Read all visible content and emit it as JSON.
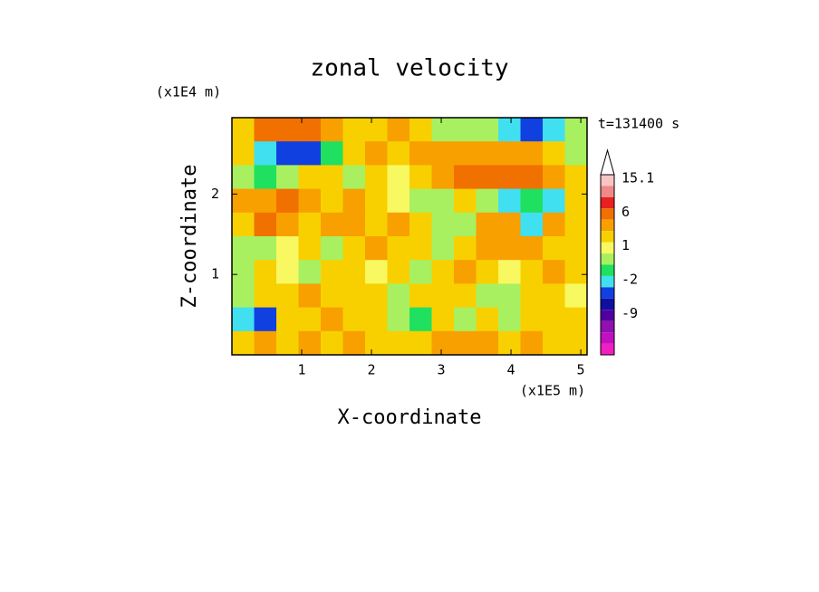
{
  "chart_data": {
    "type": "contour",
    "title": "zonal velocity",
    "x_label": "X-coordinate",
    "y_label": "Z-coordinate",
    "x_unit": "(x1E5 m)",
    "y_unit": "(x1E4 m)",
    "annotation": "t=131400 s",
    "xlim": [
      0,
      5.09
    ],
    "ylim": [
      0,
      2.95
    ],
    "xticks": [
      1,
      2,
      3,
      4,
      5
    ],
    "yticks": [
      1,
      2
    ],
    "levels": [
      15.1,
      12,
      9,
      6,
      4,
      2,
      1,
      0,
      -1,
      -2,
      -4,
      -6,
      -9,
      -12,
      -15,
      -18,
      -21
    ],
    "colors": [
      "#f8c4c4",
      "#f08888",
      "#e82020",
      "#f07000",
      "#f8a000",
      "#f8d000",
      "#f8f860",
      "#a8f060",
      "#20e060",
      "#40e0f0",
      "#1040e0",
      "#1010a0",
      "#5000a0",
      "#9010b0",
      "#c010c0",
      "#f020c0"
    ],
    "colorbar_labels": [
      15.1,
      6,
      1,
      -2,
      -9
    ],
    "field": [
      [
        1,
        5,
        5,
        5,
        3,
        1,
        1,
        3,
        1,
        -1,
        -1,
        -1,
        -4,
        -6,
        -4,
        -1
      ],
      [
        1,
        -4,
        -6,
        -6,
        -2,
        1,
        3,
        1,
        3,
        3,
        2,
        3,
        3,
        2,
        1,
        -1
      ],
      [
        -1,
        -2,
        -1,
        1,
        1,
        -1,
        1,
        0,
        1,
        3,
        5,
        5,
        5,
        5,
        3,
        1
      ],
      [
        3,
        3,
        5,
        3,
        1,
        2,
        1,
        0,
        -1,
        -1,
        1,
        -1,
        -4,
        -2,
        -4,
        1
      ],
      [
        1,
        5,
        3,
        1,
        2,
        3,
        1,
        2,
        1,
        -1,
        -1,
        2,
        3,
        -4,
        3,
        1
      ],
      [
        -1,
        -1,
        0,
        1,
        -1,
        1,
        2,
        1,
        1,
        -1,
        1,
        2,
        3,
        3,
        1,
        1
      ],
      [
        -1,
        1,
        0,
        -1,
        1,
        1,
        0,
        1,
        -1,
        1,
        2,
        1,
        0,
        1,
        2,
        1
      ],
      [
        -1,
        1,
        1,
        2,
        1,
        1,
        1,
        -1,
        1,
        1,
        1,
        -1,
        -1,
        1,
        1,
        0
      ],
      [
        -4,
        -6,
        1,
        1,
        2,
        1,
        1,
        -1,
        -2,
        1,
        -1,
        1,
        -1,
        1,
        1,
        1
      ],
      [
        1,
        3,
        1,
        2,
        1,
        2,
        1,
        1,
        1,
        3,
        2,
        3,
        1,
        3,
        1,
        1
      ]
    ]
  }
}
